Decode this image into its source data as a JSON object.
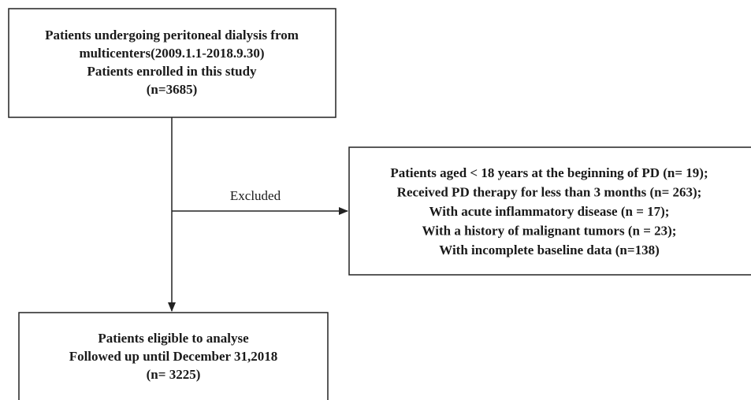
{
  "nodes": [
    {
      "lines": [
        "Patients undergoing peritoneal dialysis from",
        "multicenters(2009.1.1-2018.9.30)",
        "Patients enrolled in this study",
        "(n=3685)"
      ]
    },
    {
      "lines": [
        "Patients aged < 18 years at the beginning of PD (n= 19);",
        "Received PD therapy for less than 3 months (n= 263);",
        "With acute inflammatory disease (n = 17);",
        "With a history of malignant tumors (n = 23);",
        "With incomplete baseline data (n=138)"
      ]
    },
    {
      "lines": [
        "Patients eligible to analyse",
        "Followed up until December 31,2018",
        "(n= 3225)"
      ]
    }
  ],
  "edges": [
    {
      "label": "Excluded"
    }
  ]
}
